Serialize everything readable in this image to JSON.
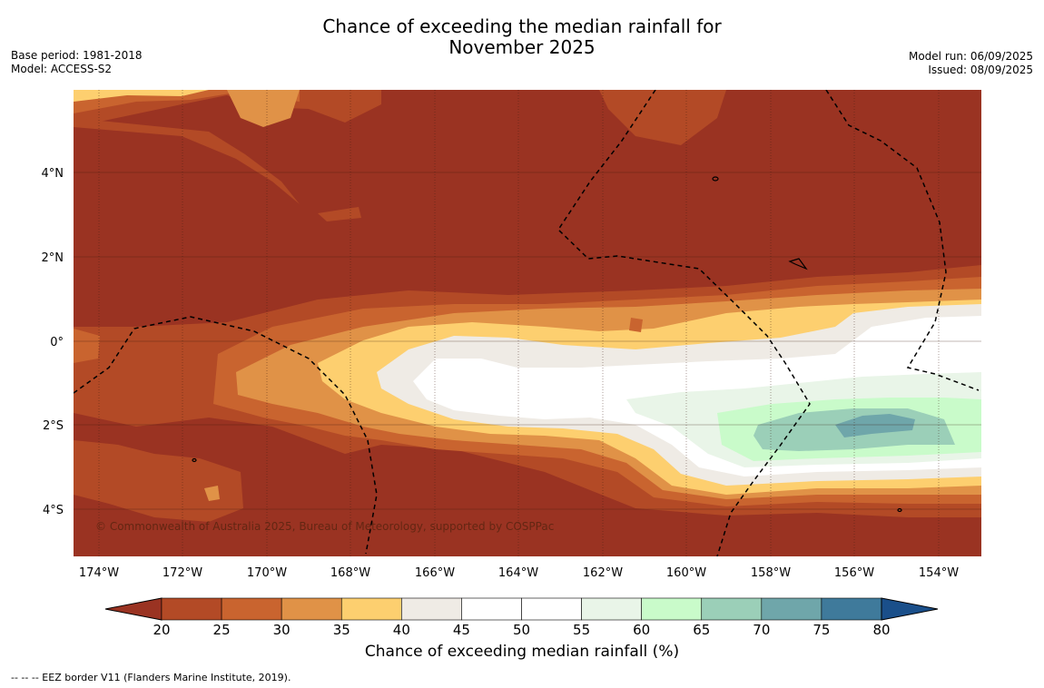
{
  "title_line1": "Chance of exceeding the median rainfall for",
  "title_line2": "November 2025",
  "meta_left": {
    "base_period": "Base period: 1981-2018",
    "model": "Model: ACCESS-S2"
  },
  "meta_right": {
    "model_run": "Model run: 06/09/2025",
    "issued": "Issued: 08/09/2025"
  },
  "map": {
    "lat_labels": [
      "4°N",
      "2°N",
      "0°",
      "2°S",
      "4°S"
    ],
    "lon_labels": [
      "174°W",
      "172°W",
      "170°W",
      "168°W",
      "166°W",
      "164°W",
      "162°W",
      "160°W",
      "158°W",
      "156°W",
      "154°W"
    ],
    "copyright": "© Commonwealth of Australia 2025, Bureau of Meteorology, supported by COSPPac"
  },
  "colorbar": {
    "ticks": [
      "20",
      "25",
      "30",
      "35",
      "40",
      "45",
      "50",
      "55",
      "60",
      "65",
      "70",
      "75",
      "80"
    ],
    "label": "Chance of exceeding median rainfall (%)",
    "colors": [
      "#9a3322",
      "#b34a26",
      "#c9642f",
      "#e09247",
      "#fdcf6f",
      "#efebe5",
      "#ffffff",
      "#ffffff",
      "#e9f5e8",
      "#c9fbca",
      "#9bcfb8",
      "#6fa6aa",
      "#3f7a9b",
      "#1a4f8a"
    ]
  },
  "footnote": "--  --  -- EEZ border V11 (Flanders Marine Institute, 2019)."
}
